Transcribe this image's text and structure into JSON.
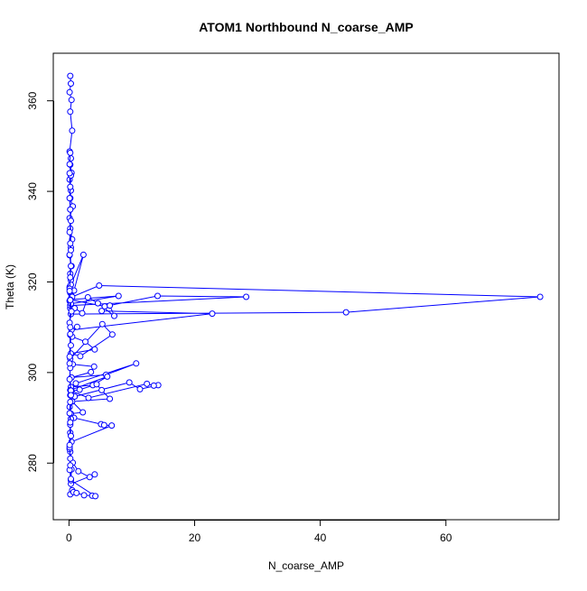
{
  "chart_data": {
    "type": "scatter",
    "title": "ATOM1 Northbound N_coarse_AMP",
    "xlabel": "N_coarse_AMP",
    "ylabel": "Theta (K)",
    "xlim": [
      -2.5,
      78
    ],
    "ylim": [
      267.5,
      370.5
    ],
    "xticks": [
      0,
      20,
      40,
      60
    ],
    "yticks": [
      280,
      300,
      320,
      340,
      360
    ],
    "grid": false,
    "legend": "none",
    "markers": "open-circle",
    "connect_points": true,
    "color": "#0000ff",
    "series": [
      {
        "x": [
          0.2,
          0.3,
          0.1,
          0.4,
          0.2,
          0.5,
          0.1,
          0.3,
          0.2,
          0.4,
          0.1,
          0.3,
          0.2,
          0.6,
          0.1,
          0.2,
          0.5,
          0.3,
          0.1,
          0.4,
          0.2,
          0.3,
          0.1,
          0.2,
          0.4,
          0.8,
          2.3,
          0.3,
          0.1,
          0.2,
          0.5,
          4.8,
          75.0,
          44.1,
          0.3,
          0.2,
          28.2,
          14.1,
          5.7,
          0.2,
          7.9,
          0.3,
          0.9,
          2.1,
          3.0,
          4.6,
          7.2,
          6.5,
          5.2,
          22.8,
          0.4,
          1.3,
          0.2,
          0.5,
          2.6,
          4.1,
          0.3,
          1.8,
          6.9,
          5.3,
          0.2,
          0.6,
          4.0,
          3.5,
          0.4,
          5.9,
          10.7,
          1.1,
          0.3,
          3.8,
          6.1,
          0.2,
          0.9,
          9.6,
          11.3,
          14.2,
          13.5,
          12.4,
          3.1,
          0.4,
          1.7,
          4.4,
          5.2,
          6.5,
          0.5,
          2.2,
          0.3,
          0.8,
          5.1,
          5.6,
          6.8,
          0.4,
          0.2,
          0.6,
          1.5,
          3.3,
          4.1,
          0.3,
          0.2,
          0.5,
          0.7,
          1.2,
          2.4,
          3.7,
          4.2,
          0.3,
          0.4,
          0.1,
          0.2,
          0.3,
          0.1,
          0.2
        ],
        "y": [
          365.5,
          363.8,
          361.9,
          360.2,
          357.6,
          353.4,
          348.8,
          347.3,
          345.9,
          344.1,
          342.6,
          340.2,
          338.5,
          336.7,
          334.1,
          331.8,
          329.4,
          327.6,
          325.9,
          323.5,
          321.8,
          320.4,
          318.9,
          317.6,
          316.9,
          318.1,
          326.0,
          319.4,
          315.8,
          314.2,
          316.7,
          319.2,
          316.7,
          313.3,
          312.9,
          314.8,
          316.7,
          316.9,
          314.6,
          316.1,
          316.9,
          315.2,
          314.2,
          313.1,
          316.6,
          315.3,
          312.5,
          314.8,
          313.6,
          313.0,
          309.4,
          310.1,
          308.3,
          307.9,
          306.8,
          305.1,
          304.2,
          303.6,
          308.4,
          310.7,
          303.0,
          301.8,
          301.3,
          300.1,
          298.9,
          299.5,
          302.0,
          297.6,
          296.8,
          297.2,
          299.1,
          296.1,
          294.7,
          297.8,
          296.3,
          297.2,
          297.1,
          297.5,
          294.4,
          295.9,
          296.2,
          297.4,
          296.1,
          294.2,
          293.6,
          291.2,
          290.9,
          290.0,
          288.6,
          288.4,
          288.3,
          284.7,
          282.5,
          280.1,
          278.2,
          276.9,
          277.5,
          275.4,
          273.1,
          274.0,
          273.6,
          273.4,
          272.9,
          272.8,
          272.7,
          276.2,
          278.6,
          283.1,
          286.7,
          289.8,
          292.4,
          295.0
        ]
      },
      {
        "x": [
          0.2,
          0.1,
          0.3,
          0.2,
          0.1,
          0.2,
          0.3,
          0.1,
          0.2,
          0.1,
          0.3,
          0.2,
          0.1,
          0.2,
          0.4,
          0.1,
          0.2,
          0.3,
          0.1,
          0.2,
          0.1,
          0.3,
          0.2,
          0.1,
          0.2,
          0.3,
          0.1,
          0.2,
          0.1,
          0.3,
          0.2,
          0.1,
          0.2,
          0.3,
          0.1,
          0.2,
          0.1,
          0.3,
          0.2,
          0.1
        ],
        "y": [
          348.5,
          346.0,
          343.5,
          341.0,
          338.5,
          336.0,
          333.5,
          331.0,
          328.5,
          326.0,
          323.5,
          321.0,
          318.5,
          316.0,
          313.5,
          311.0,
          308.5,
          306.0,
          303.5,
          301.0,
          298.5,
          296.0,
          293.5,
          291.0,
          288.5,
          286.0,
          283.5,
          281.0,
          278.5,
          276.5,
          279.5,
          284.0,
          289.0,
          295.0,
          302.0,
          310.0,
          318.0,
          327.0,
          336.0,
          344.0
        ]
      }
    ]
  }
}
